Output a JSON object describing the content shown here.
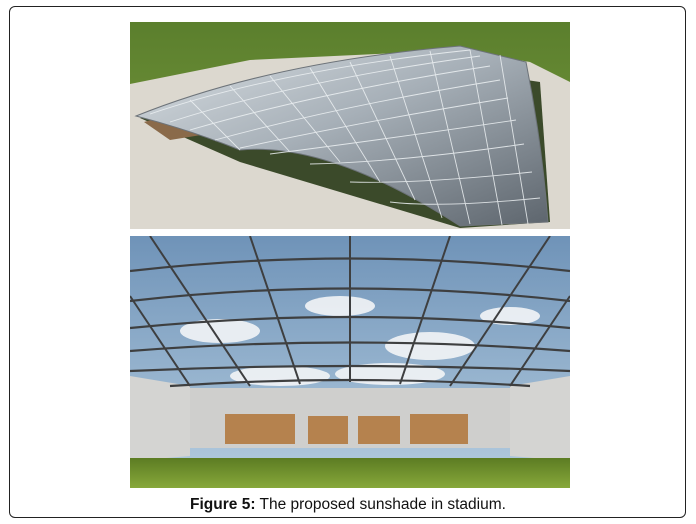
{
  "figure": {
    "caption_label": "Figure 5:",
    "caption_text": " The proposed sunshade in stadium.",
    "images": [
      {
        "name": "aerial-view-render"
      },
      {
        "name": "interior-view-render"
      }
    ]
  }
}
